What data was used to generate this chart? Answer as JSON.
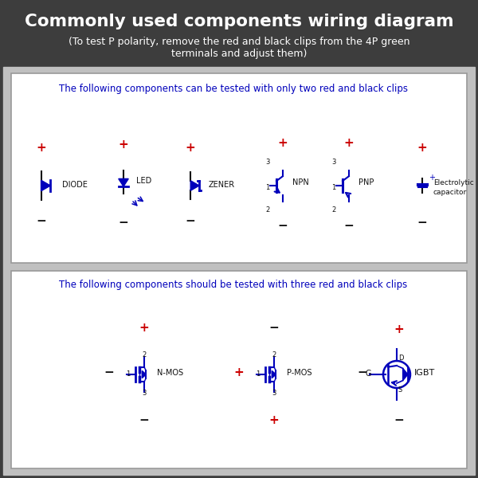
{
  "title": "Commonly used components wiring diagram",
  "subtitle": "(To test P polarity, remove the red and black clips from the 4P green\nterminals and adjust them)",
  "header_bg": "#3d3d3d",
  "panel_bg": "#c8c8c8",
  "box_bg": "#ffffff",
  "title_color": "#ffffff",
  "subtitle_color": "#ffffff",
  "blue_color": "#0000bb",
  "red_color": "#cc0000",
  "dark_color": "#111111",
  "section1_text": "The following components can be tested with only two red and black clips",
  "section2_text": "The following components should be tested with three red and black clips"
}
